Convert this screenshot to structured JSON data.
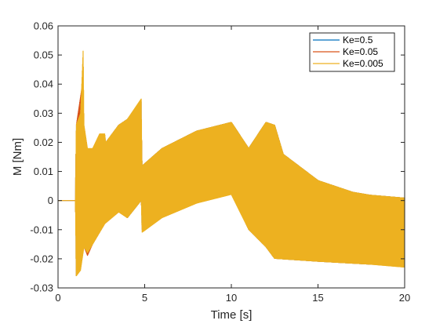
{
  "chart_data": {
    "type": "line",
    "title": "",
    "xlabel": "Time [s]",
    "ylabel": "M [Nm]",
    "xlim": [
      0,
      20
    ],
    "ylim": [
      -0.03,
      0.06
    ],
    "x_ticks": [
      0,
      5,
      10,
      15,
      20
    ],
    "y_ticks": [
      -0.03,
      -0.02,
      -0.01,
      0,
      0.01,
      0.02,
      0.03,
      0.04,
      0.05,
      0.06
    ],
    "x_tick_labels": [
      "0",
      "5",
      "10",
      "15",
      "20"
    ],
    "y_tick_labels": [
      "-0.03",
      "-0.02",
      "-0.01",
      "0",
      "0.01",
      "0.02",
      "0.03",
      "0.04",
      "0.05",
      "0.06"
    ],
    "grid": false,
    "legend_position": "top-right",
    "series": [
      {
        "name": "Ke=0.5",
        "color": "#0072bd",
        "upper": [
          [
            0,
            0
          ],
          [
            1,
            0
          ],
          [
            1.05,
            0.026
          ],
          [
            1.4,
            0.024
          ],
          [
            1.5,
            0.01
          ],
          [
            1.55,
            -0.01
          ],
          [
            1.7,
            0.012
          ],
          [
            2.0,
            0.018
          ],
          [
            2.7,
            0.022
          ],
          [
            2.75,
            0.02
          ],
          [
            3.5,
            0.026
          ],
          [
            4.0,
            0.028
          ],
          [
            4.8,
            0.034
          ],
          [
            4.85,
            0.012
          ],
          [
            6,
            0.018
          ],
          [
            8,
            0.024
          ],
          [
            10,
            0.027
          ],
          [
            11,
            0.018
          ],
          [
            12,
            0.027
          ],
          [
            12.5,
            0.026
          ],
          [
            13,
            0.016
          ],
          [
            15,
            0.007
          ],
          [
            17,
            0.003
          ],
          [
            18,
            0.002
          ],
          [
            20,
            0.001
          ]
        ],
        "lower": [
          [
            0,
            0
          ],
          [
            1,
            0
          ],
          [
            1.05,
            -0.026
          ],
          [
            1.5,
            -0.01
          ],
          [
            1.7,
            -0.018
          ],
          [
            2.0,
            -0.015
          ],
          [
            2.7,
            -0.007
          ],
          [
            3.5,
            -0.003
          ],
          [
            4.0,
            -0.006
          ],
          [
            4.8,
            0.0
          ],
          [
            4.85,
            -0.01
          ],
          [
            6,
            -0.005
          ],
          [
            8,
            0.0
          ],
          [
            10,
            0.003
          ],
          [
            11,
            -0.01
          ],
          [
            12,
            -0.016
          ],
          [
            12.5,
            -0.02
          ],
          [
            15,
            -0.021
          ],
          [
            18,
            -0.022
          ],
          [
            20,
            -0.022
          ]
        ]
      },
      {
        "name": "Ke=0.05",
        "color": "#d95319",
        "upper": [
          [
            0,
            0
          ],
          [
            1,
            0
          ],
          [
            1.05,
            0.026
          ],
          [
            1.4,
            0.04
          ],
          [
            1.5,
            0.02
          ],
          [
            1.7,
            0.012
          ],
          [
            2.0,
            0.018
          ],
          [
            2.7,
            0.022
          ],
          [
            2.75,
            0.02
          ],
          [
            3.5,
            0.026
          ],
          [
            4.0,
            0.028
          ],
          [
            4.8,
            0.034
          ],
          [
            4.85,
            0.012
          ],
          [
            6,
            0.018
          ],
          [
            8,
            0.024
          ],
          [
            10,
            0.027
          ],
          [
            11,
            0.018
          ],
          [
            12,
            0.027
          ],
          [
            12.5,
            0.026
          ],
          [
            13,
            0.016
          ],
          [
            15,
            0.007
          ],
          [
            17,
            0.003
          ],
          [
            18,
            0.002
          ],
          [
            20,
            0.001
          ]
        ],
        "lower": [
          [
            0,
            0
          ],
          [
            1,
            0
          ],
          [
            1.05,
            -0.026
          ],
          [
            1.5,
            -0.016
          ],
          [
            1.7,
            -0.019
          ],
          [
            2.0,
            -0.015
          ],
          [
            2.7,
            -0.008
          ],
          [
            3.5,
            -0.004
          ],
          [
            4.0,
            -0.006
          ],
          [
            4.8,
            0.0
          ],
          [
            4.85,
            -0.01
          ],
          [
            6,
            -0.005
          ],
          [
            8,
            0.0
          ],
          [
            10,
            0.003
          ],
          [
            11,
            -0.01
          ],
          [
            12,
            -0.016
          ],
          [
            12.5,
            -0.02
          ],
          [
            15,
            -0.021
          ],
          [
            18,
            -0.022
          ],
          [
            20,
            -0.022
          ]
        ]
      },
      {
        "name": "Ke=0.005",
        "color": "#edb120",
        "upper": [
          [
            0,
            0
          ],
          [
            1,
            0
          ],
          [
            1.05,
            0.026
          ],
          [
            1.3,
            0.03
          ],
          [
            1.45,
            0.052
          ],
          [
            1.5,
            0.026
          ],
          [
            1.7,
            0.018
          ],
          [
            2.0,
            0.018
          ],
          [
            2.4,
            0.023
          ],
          [
            2.7,
            0.023
          ],
          [
            2.75,
            0.02
          ],
          [
            3.5,
            0.026
          ],
          [
            4.0,
            0.028
          ],
          [
            4.8,
            0.035
          ],
          [
            4.85,
            0.012
          ],
          [
            6,
            0.018
          ],
          [
            8,
            0.024
          ],
          [
            10,
            0.027
          ],
          [
            11,
            0.018
          ],
          [
            12,
            0.027
          ],
          [
            12.5,
            0.026
          ],
          [
            13,
            0.016
          ],
          [
            15,
            0.007
          ],
          [
            17,
            0.003
          ],
          [
            18,
            0.002
          ],
          [
            20,
            0.001
          ]
        ],
        "lower": [
          [
            0,
            0
          ],
          [
            1,
            0
          ],
          [
            1.05,
            -0.026
          ],
          [
            1.3,
            -0.024
          ],
          [
            1.5,
            -0.016
          ],
          [
            1.7,
            -0.018
          ],
          [
            2.0,
            -0.015
          ],
          [
            2.7,
            -0.008
          ],
          [
            3.5,
            -0.004
          ],
          [
            4.0,
            -0.006
          ],
          [
            4.8,
            0.0
          ],
          [
            4.85,
            -0.011
          ],
          [
            6,
            -0.006
          ],
          [
            8,
            -0.001
          ],
          [
            10,
            0.002
          ],
          [
            11,
            -0.01
          ],
          [
            12,
            -0.016
          ],
          [
            12.5,
            -0.02
          ],
          [
            15,
            -0.021
          ],
          [
            18,
            -0.022
          ],
          [
            20,
            -0.023
          ]
        ]
      }
    ]
  }
}
